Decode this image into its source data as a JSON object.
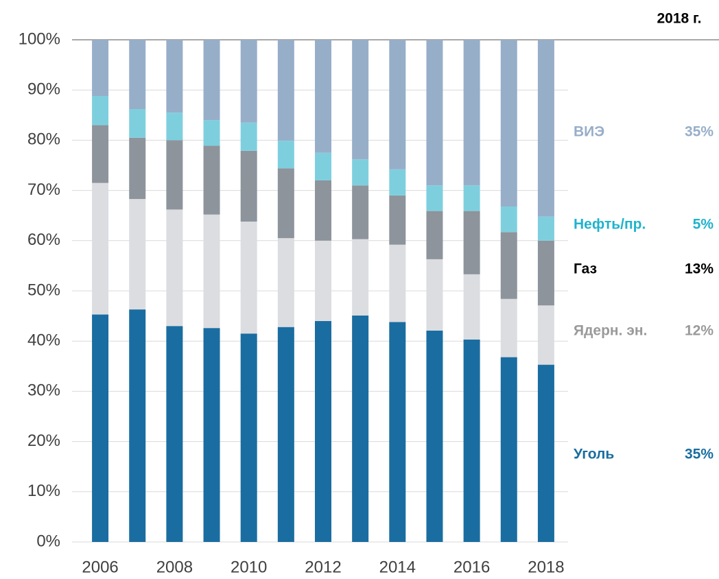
{
  "chart_data": {
    "type": "stacked_bar",
    "annotation_title": "2018 г.",
    "categories": [
      "2006",
      null,
      "2008",
      null,
      "2010",
      null,
      "2012",
      null,
      "2014",
      null,
      "2016",
      null,
      "2018"
    ],
    "ylim": [
      0,
      100
    ],
    "yticks": [
      {
        "value": 0,
        "label": "0%"
      },
      {
        "value": 10,
        "label": "10%"
      },
      {
        "value": 20,
        "label": "20%"
      },
      {
        "value": 30,
        "label": "30%"
      },
      {
        "value": 40,
        "label": "40%"
      },
      {
        "value": 50,
        "label": "50%"
      },
      {
        "value": 60,
        "label": "60%"
      },
      {
        "value": 70,
        "label": "70%"
      },
      {
        "value": 80,
        "label": "80%"
      },
      {
        "value": 90,
        "label": "90%"
      },
      {
        "value": 100,
        "label": "100%"
      }
    ],
    "grid": true,
    "series": [
      {
        "name": "Уголь",
        "color": "#1a6da0",
        "label_color": "#1a6da0",
        "share_label": "35%",
        "values": [
          45.3,
          46.3,
          43,
          42.6,
          41.5,
          42.8,
          44,
          45.1,
          43.8,
          42.1,
          40.3,
          36.8,
          35.3
        ]
      },
      {
        "name": "Ядерн. эн.",
        "color": "#dcdde1",
        "label_color": "#9a9a9a",
        "share_label": "12%",
        "values": [
          26.2,
          22,
          23.2,
          22.6,
          22.3,
          17.7,
          16,
          15.2,
          15.4,
          14.2,
          13,
          11.6,
          11.8
        ]
      },
      {
        "name": "Газ",
        "color": "#8d949c",
        "label_color": "#000000",
        "share_label": "13%",
        "values": [
          11.5,
          12.2,
          13.8,
          13.7,
          14.1,
          13.9,
          12,
          10.7,
          9.8,
          9.6,
          12.6,
          13.3,
          12.9
        ]
      },
      {
        "name": "Нефть/пр.",
        "color": "#7ecfde",
        "label_color": "#1fb3cc",
        "share_label": "5%",
        "values": [
          5.8,
          5.7,
          5.5,
          5.1,
          5.6,
          5.5,
          5.5,
          5.2,
          5.2,
          5.1,
          5.1,
          5.1,
          4.8
        ]
      },
      {
        "name": "ВИЭ",
        "color": "#97aec9",
        "label_color": "#97aec9",
        "share_label": "35%",
        "values": [
          11.2,
          13.8,
          14.5,
          16,
          16.5,
          20.1,
          22.5,
          23.8,
          25.8,
          29,
          29,
          33.2,
          35.2
        ]
      }
    ]
  }
}
